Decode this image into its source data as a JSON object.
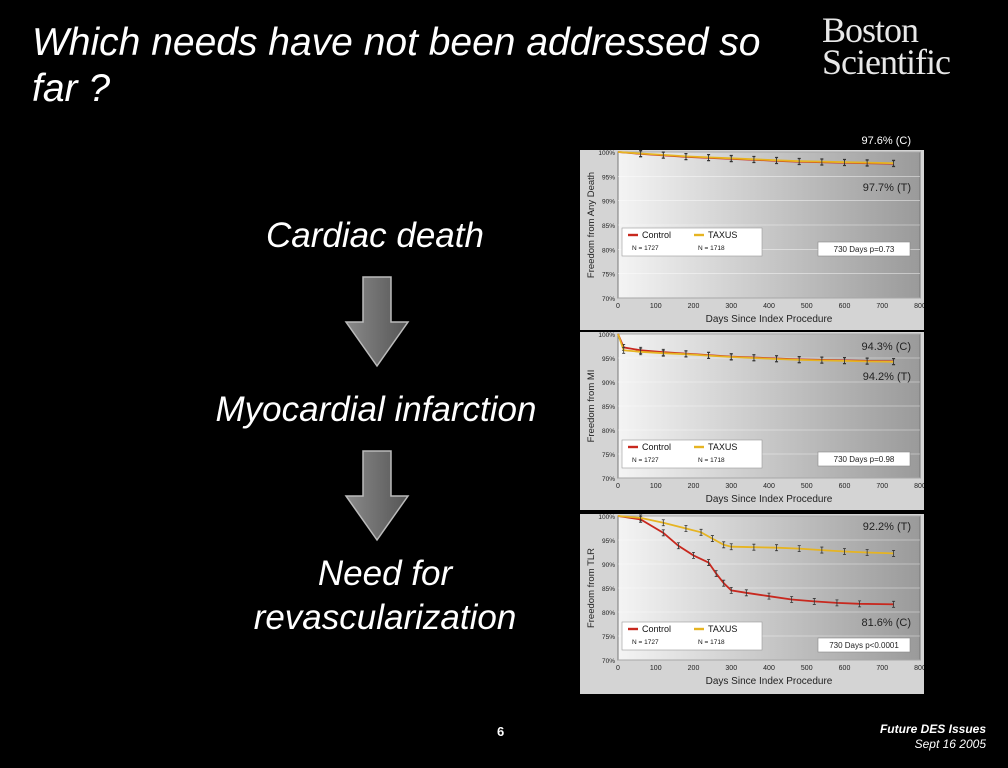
{
  "slide": {
    "title": "Which needs have not been addressed so far ?",
    "logo_line1": "Boston",
    "logo_line2": "Scientific",
    "steps": [
      "Cardiac death",
      "Myocardial infarction",
      "Need for",
      "revascularization"
    ],
    "page_number": "6",
    "footer_title": "Future DES Issues",
    "footer_date": "Sept 16 2005"
  },
  "colors": {
    "control": "#c8281e",
    "taxus": "#e6b422",
    "background": "#000000"
  },
  "chart_data": [
    {
      "type": "line",
      "ylabel": "Freedom from Any Death",
      "xlabel": "Days Since Index Procedure",
      "x_ticks": [
        "0",
        "100",
        "200",
        "300",
        "400",
        "500",
        "600",
        "700",
        "800"
      ],
      "y_ticks": [
        "100%",
        "95%",
        "90%",
        "85%",
        "80%",
        "75%",
        "70%"
      ],
      "xlim": [
        0,
        800
      ],
      "ylim": [
        70,
        100
      ],
      "legend": [
        {
          "label": "Control",
          "n": "N = 1727"
        },
        {
          "label": "TAXUS",
          "n": "N = 1718"
        }
      ],
      "pvalue": "730 Days p=0.73",
      "annotations": [
        "97.6% (C)",
        "97.7% (T)"
      ],
      "series": [
        {
          "name": "Control",
          "x": [
            0,
            60,
            120,
            180,
            240,
            300,
            360,
            420,
            480,
            540,
            600,
            660,
            730
          ],
          "y": [
            100,
            99.6,
            99.3,
            99.0,
            98.8,
            98.6,
            98.4,
            98.2,
            98.0,
            97.9,
            97.8,
            97.7,
            97.6
          ]
        },
        {
          "name": "TAXUS",
          "x": [
            0,
            60,
            120,
            180,
            240,
            300,
            360,
            420,
            480,
            540,
            600,
            660,
            730
          ],
          "y": [
            100,
            99.7,
            99.4,
            99.1,
            98.9,
            98.7,
            98.5,
            98.3,
            98.1,
            98.0,
            97.9,
            97.8,
            97.7
          ]
        }
      ]
    },
    {
      "type": "line",
      "ylabel": "Freedom from MI",
      "xlabel": "Days Since Index Procedure",
      "x_ticks": [
        "0",
        "100",
        "200",
        "300",
        "400",
        "500",
        "600",
        "700",
        "800"
      ],
      "y_ticks": [
        "100%",
        "95%",
        "90%",
        "85%",
        "80%",
        "75%",
        "70%"
      ],
      "xlim": [
        0,
        800
      ],
      "ylim": [
        70,
        100
      ],
      "legend": [
        {
          "label": "Control",
          "n": "N = 1727"
        },
        {
          "label": "TAXUS",
          "n": "N = 1718"
        }
      ],
      "pvalue": "730 Days p=0.98",
      "annotations": [
        "94.3% (C)",
        "94.2% (T)"
      ],
      "series": [
        {
          "name": "Control",
          "x": [
            0,
            15,
            60,
            120,
            180,
            240,
            300,
            360,
            420,
            480,
            540,
            600,
            660,
            730
          ],
          "y": [
            100,
            97.2,
            96.6,
            96.2,
            95.9,
            95.6,
            95.3,
            95.1,
            94.9,
            94.7,
            94.6,
            94.5,
            94.4,
            94.3
          ]
        },
        {
          "name": "TAXUS",
          "x": [
            0,
            15,
            60,
            120,
            180,
            240,
            300,
            360,
            420,
            480,
            540,
            600,
            660,
            730
          ],
          "y": [
            100,
            96.6,
            96.3,
            96.0,
            95.8,
            95.5,
            95.2,
            95.0,
            94.8,
            94.6,
            94.5,
            94.4,
            94.3,
            94.2
          ]
        }
      ]
    },
    {
      "type": "line",
      "ylabel": "Freedom from TLR",
      "xlabel": "Days Since Index Procedure",
      "x_ticks": [
        "0",
        "100",
        "200",
        "300",
        "400",
        "500",
        "600",
        "700",
        "800"
      ],
      "y_ticks": [
        "100%",
        "95%",
        "90%",
        "85%",
        "80%",
        "75%",
        "70%"
      ],
      "xlim": [
        0,
        800
      ],
      "ylim": [
        70,
        100
      ],
      "legend": [
        {
          "label": "Control",
          "n": "N = 1727"
        },
        {
          "label": "TAXUS",
          "n": "N = 1718"
        }
      ],
      "pvalue": "730 Days p<0.0001",
      "annotations": [
        "92.2% (T)",
        "81.6% (C)"
      ],
      "series": [
        {
          "name": "Control",
          "x": [
            0,
            60,
            120,
            160,
            200,
            240,
            260,
            280,
            300,
            340,
            400,
            460,
            520,
            580,
            640,
            730
          ],
          "y": [
            100,
            99.3,
            96.5,
            93.8,
            91.8,
            90.3,
            88.0,
            86.0,
            84.5,
            84.0,
            83.3,
            82.6,
            82.2,
            81.9,
            81.7,
            81.6
          ]
        },
        {
          "name": "TAXUS",
          "x": [
            0,
            60,
            120,
            180,
            220,
            250,
            280,
            300,
            360,
            420,
            480,
            540,
            600,
            660,
            730
          ],
          "y": [
            100,
            99.6,
            98.6,
            97.4,
            96.6,
            95.3,
            94.0,
            93.6,
            93.5,
            93.4,
            93.2,
            92.9,
            92.6,
            92.4,
            92.2
          ]
        }
      ]
    }
  ]
}
